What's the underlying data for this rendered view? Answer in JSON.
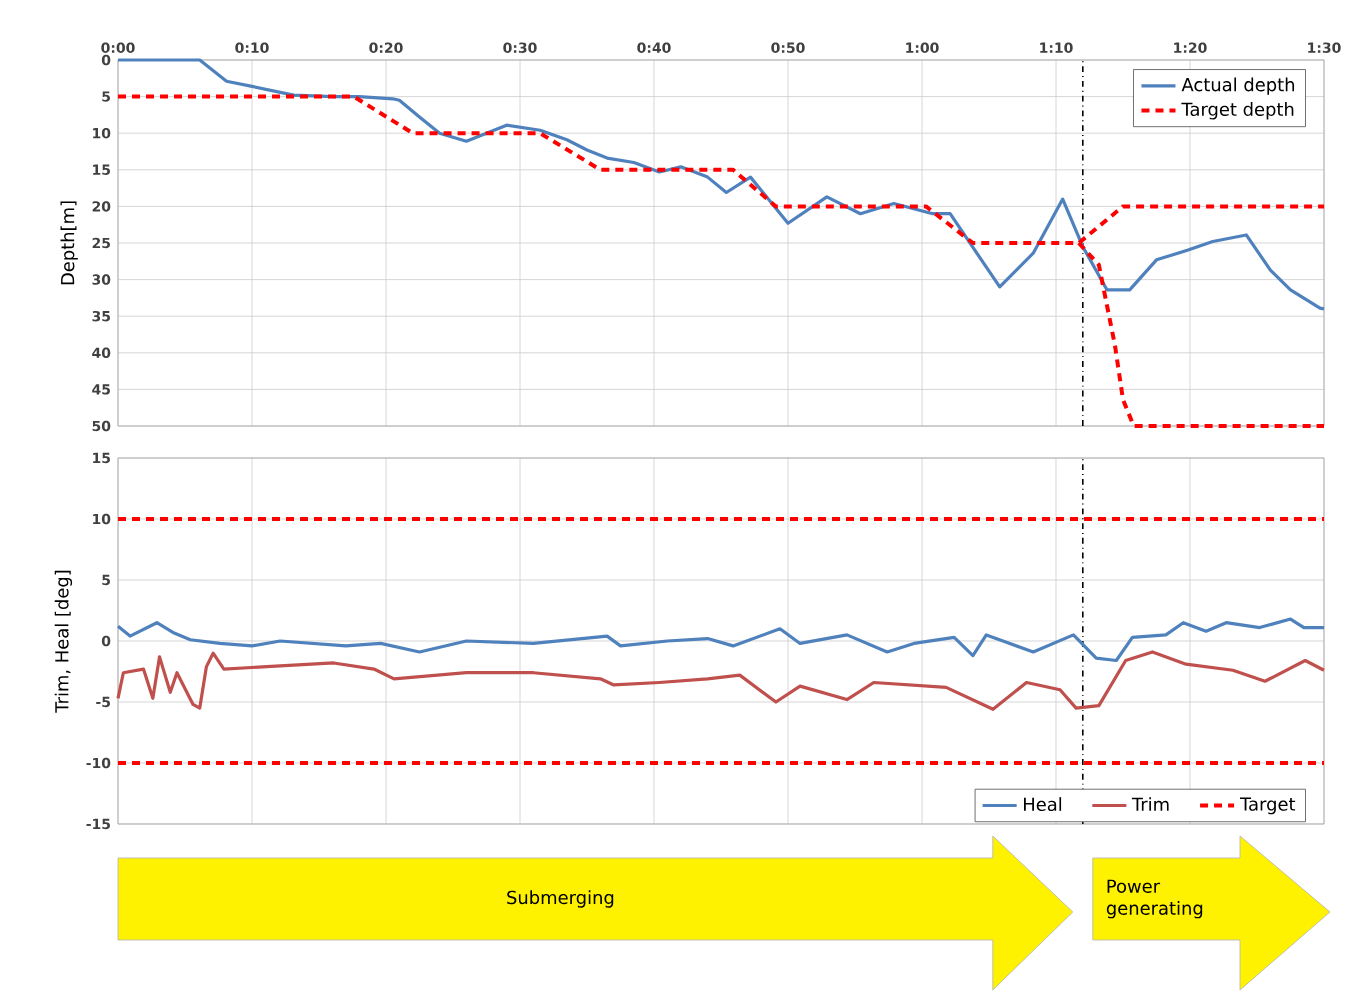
{
  "chart_data": [
    {
      "type": "line",
      "ylabel": "Depth[m]",
      "xlim": [
        0,
        90
      ],
      "xticks": [
        {
          "value": 0,
          "label": "0:00"
        },
        {
          "value": 10,
          "label": "0:10"
        },
        {
          "value": 20,
          "label": "0:20"
        },
        {
          "value": 30,
          "label": "0:30"
        },
        {
          "value": 40,
          "label": "0:40"
        },
        {
          "value": 50,
          "label": "0:50"
        },
        {
          "value": 60,
          "label": "1:00"
        },
        {
          "value": 70,
          "label": "1:10"
        },
        {
          "value": 80,
          "label": "1:20"
        },
        {
          "value": 90,
          "label": "1:30"
        }
      ],
      "ylim": [
        50,
        0
      ],
      "yticks": [
        0,
        5,
        10,
        15,
        20,
        25,
        30,
        35,
        40,
        45,
        50
      ],
      "grid": true,
      "legend": "top right",
      "marker": "none",
      "ref_lines": [
        {
          "axis": "x",
          "value": 72,
          "color": "#000000",
          "line_style": "dashdot"
        }
      ],
      "series": [
        {
          "name": "Actual depth",
          "color": "#4f81bd",
          "line_style": "solid",
          "x": [
            0,
            6.1,
            8.1,
            10,
            13.1,
            16,
            18,
            20.5,
            21,
            22.5,
            24,
            26,
            27.5,
            29,
            31.5,
            33.5,
            35,
            36.5,
            38.5,
            40.4,
            42,
            44,
            45.4,
            47.2,
            50,
            52.9,
            55.4,
            57.9,
            60.8,
            62.1,
            65.8,
            68.3,
            70.5,
            72,
            73.8,
            75.5,
            77.5,
            79.8,
            81.7,
            84.2,
            86,
            87.5,
            89.7,
            90
          ],
          "values": [
            0,
            0,
            2.9,
            3.6,
            4.8,
            5,
            5,
            5.3,
            5.5,
            7.8,
            10,
            11.1,
            10,
            8.9,
            9.6,
            10.9,
            12.3,
            13.4,
            14,
            15.3,
            14.6,
            16,
            18.1,
            16,
            22.3,
            18.7,
            21,
            19.6,
            21,
            21,
            31,
            26.4,
            19,
            25.5,
            31.4,
            31.4,
            27.3,
            26,
            24.8,
            23.9,
            28.7,
            31.4,
            33.9,
            34
          ]
        },
        {
          "name": "Target depth",
          "color": "#ff0000",
          "line_style": "dashed",
          "x": [
            0,
            17.6,
            22,
            31.5,
            36,
            45.9,
            49.1,
            60.3,
            63.8,
            71.7,
            75,
            90
          ],
          "values": [
            5,
            5,
            10,
            10,
            15,
            15,
            20,
            20,
            25,
            25,
            20,
            20
          ]
        },
        {
          "color": "#ff0000",
          "line_style": "dashed",
          "x": [
            71.7,
            73.2,
            74.4,
            75,
            75.8,
            90
          ],
          "values": [
            25,
            28,
            39,
            46.4,
            50,
            50
          ]
        }
      ]
    },
    {
      "type": "line",
      "ylabel": "Trim, Heal [deg]",
      "xlim": [
        0,
        90
      ],
      "xticks": [
        0,
        10,
        20,
        30,
        40,
        50,
        60,
        70,
        80,
        90
      ],
      "ylim": [
        -15,
        15
      ],
      "yticks": [
        -15,
        -10,
        -5,
        0,
        5,
        10,
        15
      ],
      "grid": true,
      "legend": "bottom right",
      "marker": "none",
      "tick_labels": "y",
      "ref_lines": [
        {
          "axis": "x",
          "value": 72,
          "color": "#000000",
          "line_style": "dashdot"
        }
      ],
      "annotations": [
        "Submerging",
        "Power generating"
      ],
      "series": [
        {
          "name": "Heal",
          "color": "#4f81bd",
          "line_style": "solid",
          "x": [
            0,
            0.9,
            2.9,
            4.1,
            5.4,
            7.6,
            10,
            12.1,
            17,
            19.6,
            22.5,
            26,
            31,
            36.5,
            37.5,
            41,
            44,
            45.9,
            49.4,
            50.9,
            54.4,
            57.4,
            59.4,
            62.4,
            63.8,
            64.8,
            66.3,
            68.3,
            71.3,
            73,
            74.5,
            75.7,
            78.2,
            79.5,
            81.2,
            82.7,
            85.2,
            87.5,
            88.5,
            90
          ],
          "values": [
            1.2,
            0.4,
            1.5,
            0.7,
            0.1,
            -0.2,
            -0.4,
            0,
            -0.4,
            -0.2,
            -0.9,
            0,
            -0.2,
            0.4,
            -0.4,
            0,
            0.2,
            -0.4,
            1,
            -0.2,
            0.5,
            -0.9,
            -0.2,
            0.3,
            -1.2,
            0.5,
            -0.1,
            -0.9,
            0.5,
            -1.4,
            -1.6,
            0.3,
            0.5,
            1.5,
            0.8,
            1.5,
            1.1,
            1.8,
            1.1,
            1.1
          ]
        },
        {
          "name": "Trim",
          "color": "#c0504d",
          "line_style": "solid",
          "x": [
            0,
            0.4,
            1.9,
            2.6,
            3.1,
            3.9,
            4.4,
            5.6,
            6.1,
            6.6,
            7.1,
            7.9,
            11.1,
            16.1,
            19.1,
            20.6,
            26,
            31,
            36,
            37,
            40.4,
            44,
            46.4,
            49.1,
            50.9,
            54.4,
            56.4,
            61.8,
            65.3,
            67.8,
            70.3,
            71.5,
            73.2,
            75.2,
            77.2,
            79.7,
            83.2,
            85.6,
            88.6,
            90
          ],
          "values": [
            -4.7,
            -2.6,
            -2.3,
            -4.7,
            -1.3,
            -4.2,
            -2.6,
            -5.2,
            -5.5,
            -2.1,
            -1,
            -2.3,
            -2.1,
            -1.8,
            -2.3,
            -3.1,
            -2.6,
            -2.6,
            -3.1,
            -3.6,
            -3.4,
            -3.1,
            -2.8,
            -5,
            -3.7,
            -4.8,
            -3.4,
            -3.8,
            -5.6,
            -3.4,
            -4,
            -5.5,
            -5.3,
            -1.6,
            -0.9,
            -1.9,
            -2.4,
            -3.3,
            -1.6,
            -2.4
          ]
        },
        {
          "name": "Target",
          "color": "#ff0000",
          "line_style": "dashed",
          "x": [
            0,
            90
          ],
          "values": [
            10,
            10
          ]
        },
        {
          "color": "#ff0000",
          "line_style": "dashed",
          "x": [
            0,
            90
          ],
          "values": [
            -10,
            -10
          ]
        }
      ]
    }
  ]
}
